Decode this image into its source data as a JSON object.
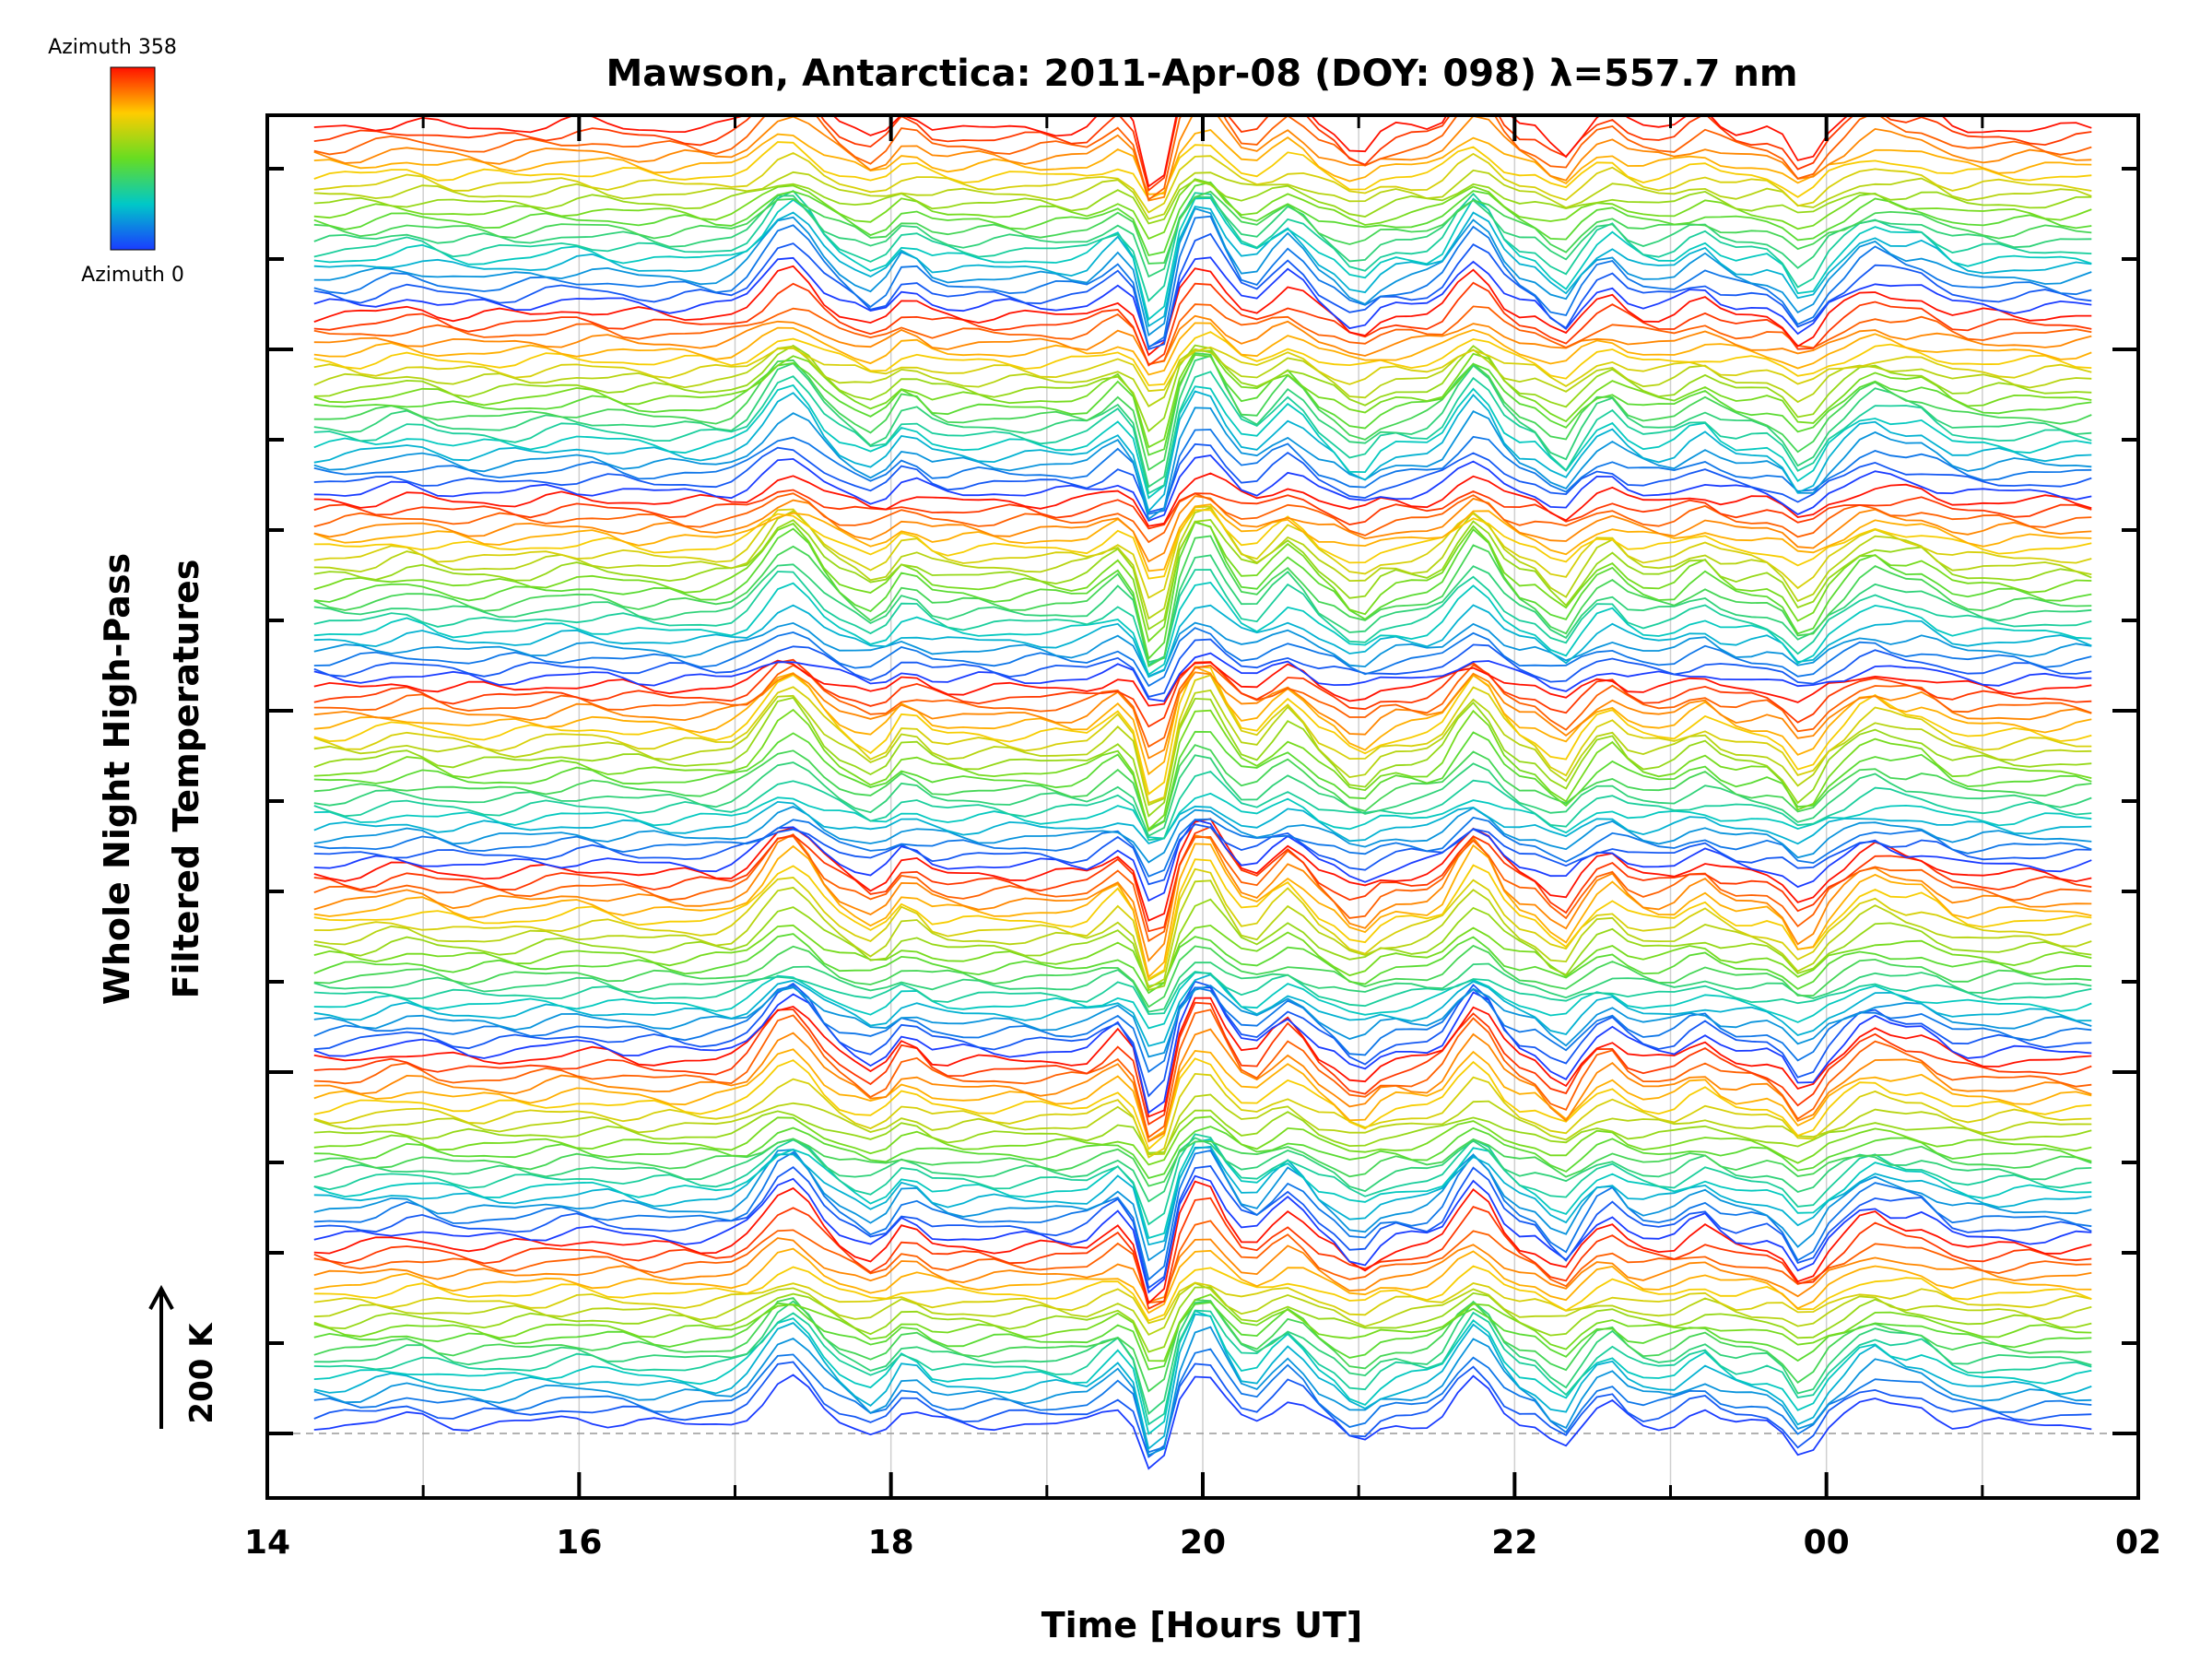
{
  "chart_data": {
    "type": "line",
    "title": "Mawson, Antarctica: 2011-Apr-08 (DOY: 098) λ=557.7 nm",
    "xlabel": "Time [Hours UT]",
    "ylabel_line1": "Whole Night High-Pass",
    "ylabel_line2": "Filtered Temperatures",
    "x_ticks": [
      "14",
      "16",
      "18",
      "20",
      "22",
      "00",
      "02"
    ],
    "x_tick_hours": [
      14,
      16,
      18,
      20,
      22,
      24,
      26
    ],
    "xlim": [
      14,
      26
    ],
    "data_xlim": [
      14.3,
      25.7
    ],
    "scale_bar_label": "200 K",
    "colorbar": {
      "top_label": "Azimuth 358",
      "bottom_label": "Azimuth 0"
    },
    "series_count": 140,
    "series_cycle": 20,
    "baseline": "dashed",
    "peak_times": [
      17.35,
      18.1,
      19.45,
      20.0,
      20.55,
      21.75,
      22.6,
      23.2,
      24.3,
      24.6
    ],
    "trough_times": [
      17.9,
      19.7,
      21.0,
      22.3,
      23.85
    ],
    "grid": "vertical",
    "note": "Stacked high-pass filtered temperature traces, one per zenith/azimuth sector, offset vertically; colour encodes azimuth from 0 (blue) to 358 (red)."
  }
}
